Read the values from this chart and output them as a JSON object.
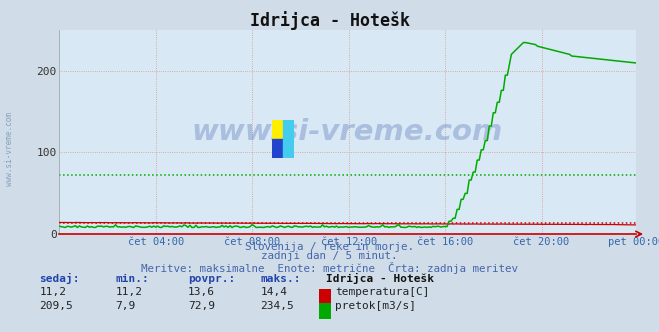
{
  "title": "Idrijca - Hotešk",
  "bg_color": "#d0dce8",
  "plot_bg_color": "#d8e8f4",
  "x_ticks_labels": [
    "čet 04:00",
    "čet 08:00",
    "čet 12:00",
    "čet 16:00",
    "čet 20:00",
    "pet 00:00"
  ],
  "x_ticks_pos": [
    48,
    96,
    144,
    192,
    240,
    287
  ],
  "ylim": [
    0,
    250
  ],
  "y_ticks": [
    0,
    100,
    200
  ],
  "temp_color": "#cc0000",
  "flow_color": "#00aa00",
  "temp_avg": 13.6,
  "flow_avg": 72.9,
  "temp_max": 14.4,
  "flow_max": 234.5,
  "temp_min": 11.2,
  "flow_min": 7.9,
  "temp_now": 11.2,
  "flow_now": 209.5,
  "subtitle1": "Slovenija / reke in morje.",
  "subtitle2": "zadnji dan / 5 minut.",
  "subtitle3": "Meritve: maksimalne  Enote: metrične  Črta: zadnja meritev",
  "watermark": "www.si-vreme.com",
  "legend_title": "Idrijca - Hotešk",
  "legend_temp": "temperatura[C]",
  "legend_flow": "pretok[m3/s]",
  "col_headers": [
    "sedaj:",
    "min.:",
    "povpr.:",
    "maks.:"
  ],
  "temp_row": [
    "11,2",
    "11,2",
    "13,6",
    "14,4"
  ],
  "flow_row": [
    "209,5",
    "7,9",
    "72,9",
    "234,5"
  ],
  "n_points": 288
}
